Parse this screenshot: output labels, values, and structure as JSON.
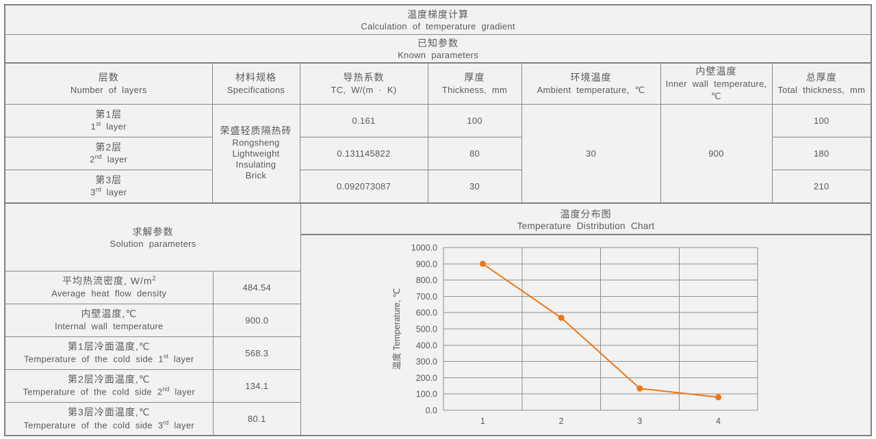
{
  "colors": {
    "background": "#f2f2f2",
    "outer_border": "#7f7f7f",
    "cell_border": "#878787",
    "grid": "#8f8f8f",
    "text": "#595959",
    "line": "#f0750f"
  },
  "title": {
    "zh": "温度梯度计算",
    "en": "Calculation of temperature gradient"
  },
  "known_params": {
    "zh": "已知参数",
    "en": "Known parameters"
  },
  "table": {
    "columns": [
      {
        "zh": "层数",
        "en": "Number of layers"
      },
      {
        "zh": "材料规格",
        "en": "Specifications"
      },
      {
        "zh": "导热系数",
        "en": "TC, W/(m · K)"
      },
      {
        "zh": "厚度",
        "en": "Thickness, mm"
      },
      {
        "zh": "环境温度",
        "en": "Ambient temperature, ℃"
      },
      {
        "zh": "内壁温度",
        "en": "Inner wall temperature, ℃"
      },
      {
        "zh": "总厚度",
        "en": "Total thickness, mm"
      }
    ],
    "material": {
      "zh": "荣盛轻质隔热砖",
      "en": [
        "Rongsheng",
        "Lightweight",
        "Insulating",
        "Brick"
      ]
    },
    "ambient_temperature": "30",
    "inner_wall_temperature": "900",
    "layers": [
      {
        "zh": "第1层",
        "ord": "1",
        "sup": "st",
        "word": " layer",
        "tc": "0.161",
        "thickness": "100",
        "total_thickness": "100"
      },
      {
        "zh": "第2层",
        "ord": "2",
        "sup": "nd",
        "word": " layer",
        "tc": "0.131145822",
        "thickness": "80",
        "total_thickness": "180"
      },
      {
        "zh": "第3层",
        "ord": "3",
        "sup": "rd",
        "word": " layer",
        "tc": "0.092073087",
        "thickness": "30",
        "total_thickness": "210"
      }
    ]
  },
  "solution": {
    "header": {
      "zh": "求解参数",
      "en": "Solution parameters"
    },
    "rows": [
      {
        "zh": "平均热流密度, W/m",
        "zh_sup": "2",
        "en": "Average heat flow density",
        "en_sup": "",
        "en_post": "",
        "value": "484.54"
      },
      {
        "zh": "内壁温度,℃",
        "zh_sup": "",
        "en": "Internal wall temperature",
        "en_sup": "",
        "en_post": "",
        "value": "900.0"
      },
      {
        "zh": "第1层冷面温度,℃",
        "zh_sup": "",
        "en": "Temperature of the cold side 1",
        "en_sup": "st",
        "en_post": " layer",
        "value": "568.3"
      },
      {
        "zh": "第2层冷面温度,℃",
        "zh_sup": "",
        "en": "Temperature of the cold side 2",
        "en_sup": "nd",
        "en_post": " layer",
        "value": "134.1"
      },
      {
        "zh": "第3层冷面温度,℃",
        "zh_sup": "",
        "en": "Temperature of the cold side 3",
        "en_sup": "rd",
        "en_post": " layer",
        "value": "80.1"
      }
    ]
  },
  "chart_data": {
    "type": "line",
    "title_zh": "温度分布图",
    "title_en": "Temperature Distribution Chart",
    "x": [
      "1",
      "2",
      "3",
      "4"
    ],
    "values": [
      900.0,
      568.3,
      134.1,
      80.1
    ],
    "ylabel": "温度 Temperature, ℃",
    "ylim": [
      0,
      1000
    ],
    "ystep": 100,
    "grid": true,
    "legend_position": "none",
    "line_color": "#f0750f",
    "marker": "circle",
    "tick_decimals": 1
  }
}
